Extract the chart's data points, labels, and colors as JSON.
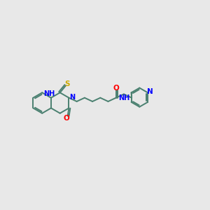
{
  "bg_color": "#e8e8e8",
  "bond_color": "#4a8070",
  "n_color": "#0000ff",
  "o_color": "#ff0000",
  "s_color": "#ccaa00",
  "lw": 1.4,
  "fs": 7.0,
  "fig_w": 3.0,
  "fig_h": 3.0,
  "dpi": 100,
  "xlim": [
    0,
    10
  ],
  "ylim": [
    0,
    10
  ]
}
